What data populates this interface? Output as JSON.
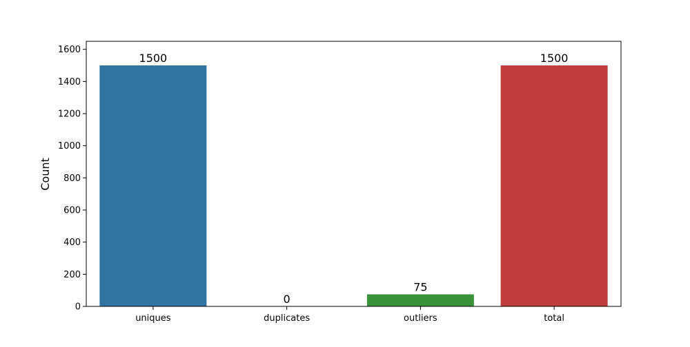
{
  "chart_data": {
    "type": "bar",
    "title": "",
    "xlabel": "",
    "ylabel": "Count",
    "categories": [
      "uniques",
      "duplicates",
      "outliers",
      "total"
    ],
    "values": [
      1500,
      0,
      75,
      1500
    ],
    "data_labels": [
      "1500",
      "0",
      "75",
      "1500"
    ],
    "colors": [
      "#3274a1",
      "#e1812c",
      "#3a923a",
      "#c03d3e"
    ],
    "ylim": [
      0,
      1650
    ],
    "yticks": [
      0,
      200,
      400,
      600,
      800,
      1000,
      1200,
      1400,
      1600
    ],
    "ytick_labels": [
      "0",
      "200",
      "400",
      "600",
      "800",
      "1000",
      "1200",
      "1400",
      "1600"
    ],
    "grid": false,
    "legend": "none"
  }
}
